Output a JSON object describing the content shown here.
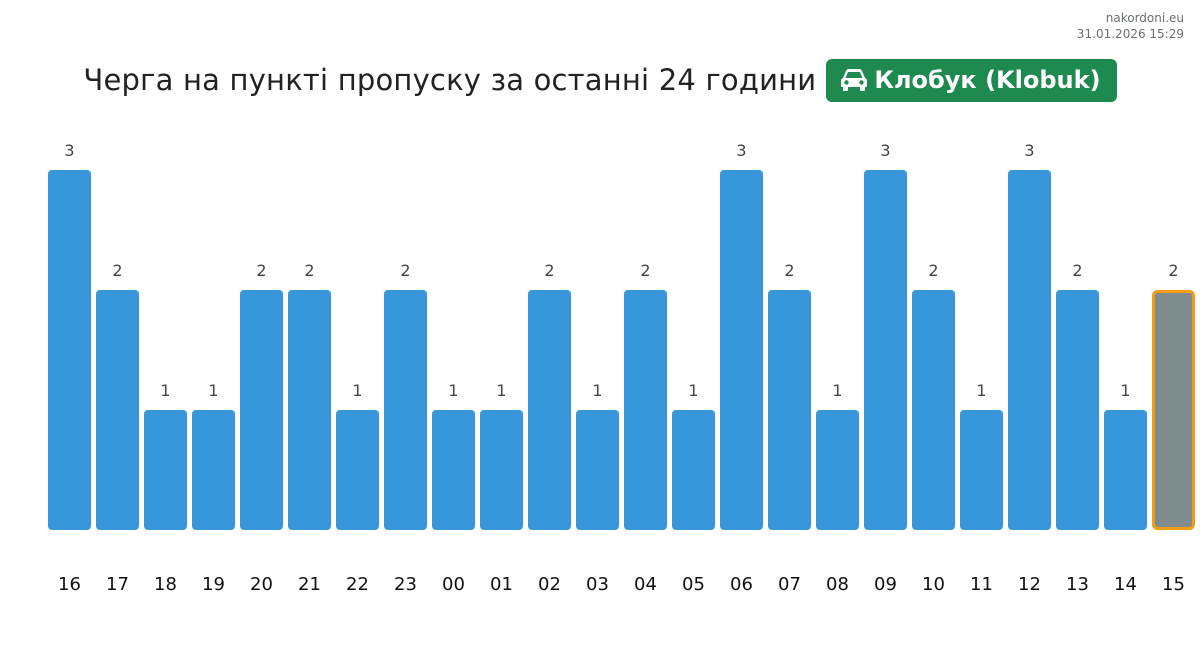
{
  "source": {
    "site": "nakordoni.eu",
    "timestamp": "31.01.2026 15:29"
  },
  "header": {
    "title": "Черга на пункті пропуску за останні 24 години",
    "badge_label": "Клобук (Klobuk)",
    "badge_icon": "car-icon",
    "badge_color": "#1e8a50"
  },
  "chart_data": {
    "type": "bar",
    "categories": [
      "16",
      "17",
      "18",
      "19",
      "20",
      "21",
      "22",
      "23",
      "00",
      "01",
      "02",
      "03",
      "04",
      "05",
      "06",
      "07",
      "08",
      "09",
      "10",
      "11",
      "12",
      "13",
      "14",
      "15"
    ],
    "values": [
      3,
      2,
      1,
      1,
      2,
      2,
      1,
      2,
      1,
      1,
      2,
      1,
      2,
      1,
      3,
      2,
      1,
      3,
      2,
      1,
      3,
      2,
      1,
      2
    ],
    "ylim": [
      0,
      3
    ],
    "bar_color": "#3897da",
    "highlight_index": 23,
    "highlight_fill": "#7f8c8d",
    "highlight_border": "#f39c12",
    "grid": false,
    "title": "",
    "xlabel": "",
    "ylabel": ""
  }
}
